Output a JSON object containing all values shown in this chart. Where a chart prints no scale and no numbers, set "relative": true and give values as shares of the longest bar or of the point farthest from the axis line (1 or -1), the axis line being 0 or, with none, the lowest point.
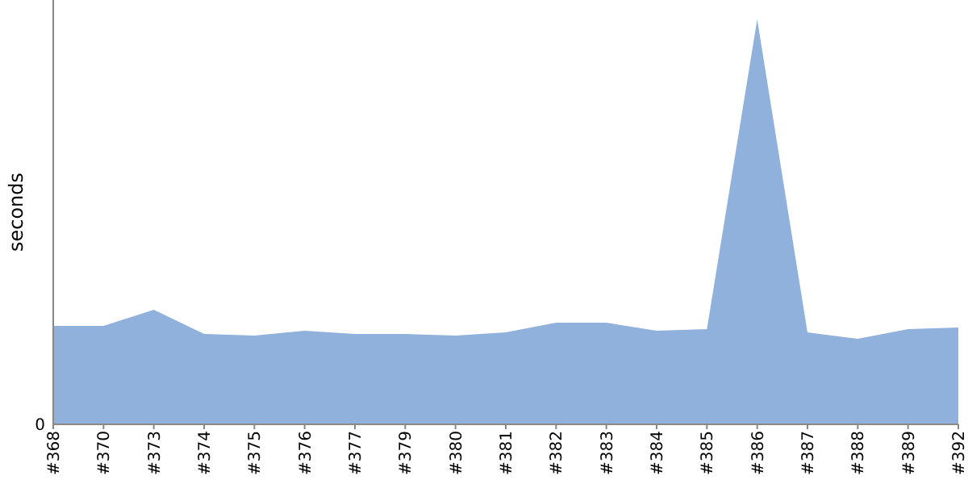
{
  "chart_data": {
    "type": "area",
    "ylabel": "seconds",
    "relative": true,
    "categories": [
      "#368",
      "#370",
      "#373",
      "#374",
      "#375",
      "#376",
      "#377",
      "#379",
      "#380",
      "#381",
      "#382",
      "#383",
      "#384",
      "#385",
      "#386",
      "#387",
      "#388",
      "#389",
      "#392"
    ],
    "series": [
      {
        "color": "#8fb1db",
        "values": [
          0.243,
          0.243,
          0.283,
          0.223,
          0.219,
          0.231,
          0.223,
          0.223,
          0.219,
          0.227,
          0.251,
          0.251,
          0.231,
          0.235,
          1,
          0.227,
          0.211,
          0.235,
          0.239
        ]
      }
    ],
    "annotations": [
      "0"
    ]
  }
}
